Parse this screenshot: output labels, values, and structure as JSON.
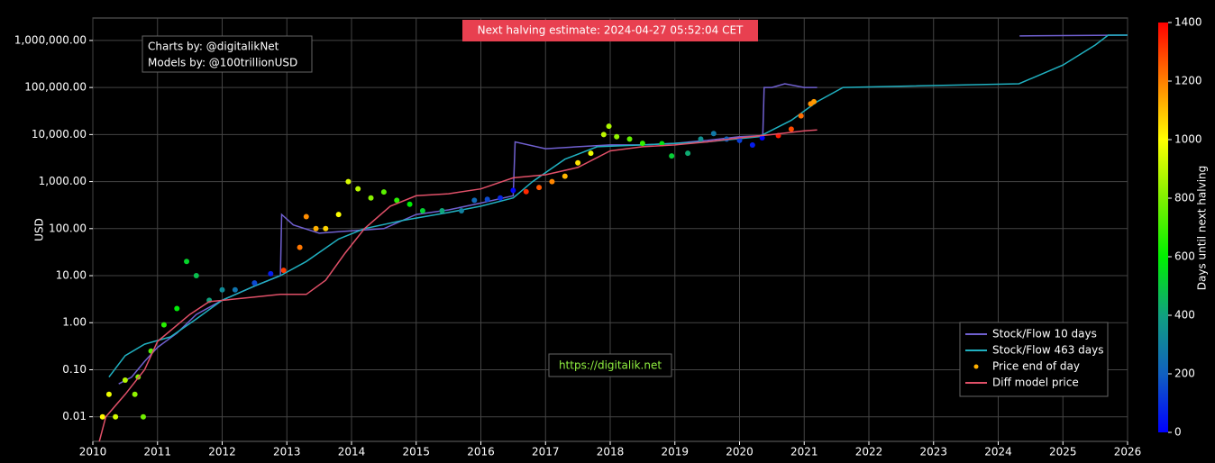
{
  "chart_data": {
    "type": "line",
    "title": "Next halving estimate: 2024-04-27 05:52:04 CET",
    "credits": [
      "Charts by: @digitalikNet",
      "Models by: @100trillionUSD"
    ],
    "watermark": "https://digitalik.net",
    "y_label": "USD",
    "log_scale": true,
    "grid": true,
    "legend_position": "lower right",
    "xlim": [
      2010,
      2026
    ],
    "xticks": [
      2010,
      2011,
      2012,
      2013,
      2014,
      2015,
      2016,
      2017,
      2018,
      2019,
      2020,
      2021,
      2022,
      2023,
      2024,
      2025,
      2026
    ],
    "ylim": [
      0.003,
      3000000
    ],
    "yticks": [
      {
        "value": 0.01,
        "label": "0.01"
      },
      {
        "value": 0.1,
        "label": "0.10"
      },
      {
        "value": 1,
        "label": "1.00"
      },
      {
        "value": 10,
        "label": "10.00"
      },
      {
        "value": 100,
        "label": "100.00"
      },
      {
        "value": 1000,
        "label": "1,000.00"
      },
      {
        "value": 10000,
        "label": "10,000.00"
      },
      {
        "value": 100000,
        "label": "100,000.00"
      },
      {
        "value": 1000000,
        "label": "1,000,000.00"
      }
    ],
    "colorbar": {
      "label": "Days until next halving",
      "clim": [
        0,
        1400
      ],
      "ticks": [
        0,
        200,
        400,
        600,
        800,
        1000,
        1200,
        1400
      ],
      "colormap": [
        "#0000ff",
        "#1060c0",
        "#10a080",
        "#00f000",
        "#80f000",
        "#ffff00",
        "#ff8000",
        "#ff0000"
      ]
    },
    "series": [
      {
        "name": "Stock/Flow 10 days",
        "type": "line",
        "color": "#7060d0",
        "x": [
          2010.4,
          2010.6,
          2010.8,
          2011.0,
          2011.3,
          2011.6,
          2012.0,
          2012.5,
          2012.9,
          2012.92,
          2013.1,
          2013.5,
          2014.0,
          2014.5,
          2015.0,
          2015.5,
          2016.0,
          2016.5,
          2016.53,
          2017.0,
          2017.5,
          2018.0,
          2018.5,
          2019.0,
          2019.5,
          2020.0,
          2020.36,
          2020.38,
          2020.5,
          2020.7,
          2021.0,
          2021.2,
          2022.0,
          2024.33,
          2025.0,
          2026.0
        ],
        "values": [
          0.05,
          0.07,
          0.15,
          0.3,
          0.6,
          1.5,
          3,
          6,
          10,
          200,
          120,
          80,
          90,
          100,
          200,
          250,
          350,
          500,
          7000,
          5000,
          5500,
          6000,
          6000,
          6500,
          7500,
          9000,
          9500,
          100000,
          100000,
          120000,
          100000,
          100000,
          null,
          1250000,
          1270000,
          1300000
        ]
      },
      {
        "name": "Stock/Flow 463 days",
        "type": "line",
        "color": "#20b0c0",
        "x": [
          2010.25,
          2010.5,
          2010.8,
          2011.2,
          2011.6,
          2012.0,
          2012.5,
          2012.9,
          2013.3,
          2013.8,
          2014.2,
          2014.8,
          2015.5,
          2016.0,
          2016.5,
          2016.8,
          2017.3,
          2017.8,
          2018.5,
          2019.5,
          2020.3,
          2020.8,
          2021.2,
          2021.6,
          2024.32,
          2025.0,
          2025.5,
          2025.7,
          2026.0
        ],
        "values": [
          0.07,
          0.2,
          0.35,
          0.5,
          1.2,
          3,
          6,
          10,
          20,
          60,
          100,
          150,
          220,
          300,
          450,
          1000,
          3000,
          5500,
          6000,
          7000,
          9000,
          20000,
          50000,
          100000,
          120000,
          300000,
          800000,
          1300000,
          1300000
        ]
      },
      {
        "name": "Price end of day",
        "type": "scatter",
        "color": "#ffb000",
        "x": [
          2010.15,
          2010.25,
          2010.35,
          2010.5,
          2010.65,
          2010.7,
          2010.78,
          2010.9,
          2011.1,
          2011.3,
          2011.45,
          2011.6,
          2011.8,
          2012.0,
          2012.2,
          2012.5,
          2012.75,
          2012.95,
          2013.2,
          2013.3,
          2013.45,
          2013.6,
          2013.8,
          2013.95,
          2014.1,
          2014.3,
          2014.5,
          2014.7,
          2014.9,
          2015.1,
          2015.4,
          2015.7,
          2015.9,
          2016.1,
          2016.3,
          2016.5,
          2016.7,
          2016.9,
          2017.1,
          2017.3,
          2017.5,
          2017.7,
          2017.9,
          2017.98,
          2018.1,
          2018.3,
          2018.5,
          2018.8,
          2018.95,
          2019.2,
          2019.4,
          2019.6,
          2019.8,
          2020.0,
          2020.2,
          2020.35,
          2020.6,
          2020.8,
          2020.95,
          2021.1,
          2021.15
        ],
        "values": [
          0.01,
          0.03,
          0.01,
          0.06,
          0.03,
          0.07,
          0.01,
          0.25,
          0.9,
          2,
          20,
          10,
          3,
          5,
          5,
          7,
          11,
          13,
          40,
          180,
          100,
          100,
          200,
          1000,
          700,
          450,
          600,
          400,
          330,
          240,
          240,
          240,
          400,
          420,
          450,
          650,
          610,
          750,
          1000,
          1300,
          2500,
          4000,
          10000,
          15000,
          9000,
          8000,
          6500,
          6400,
          3500,
          4000,
          8000,
          10500,
          8000,
          7500,
          6000,
          8500,
          9500,
          13000,
          25000,
          45000,
          50000
        ],
        "days": [
          1008,
          972,
          935,
          880,
          825,
          807,
          778,
          734,
          661,
          588,
          533,
          478,
          405,
          332,
          259,
          150,
          58,
          1308,
          1216,
          1180,
          1125,
          1070,
          997,
          942,
          888,
          815,
          741,
          668,
          595,
          522,
          413,
          303,
          230,
          157,
          84,
          11,
          1337,
          1264,
          1191,
          1117,
          1044,
          971,
          898,
          869,
          826,
          753,
          680,
          570,
          515,
          424,
          351,
          278,
          205,
          131,
          58,
          4,
          1359,
          1286,
          1231,
          1176,
          1158
        ]
      },
      {
        "name": "Diff model price",
        "type": "line",
        "color": "#e05068",
        "x": [
          2010.1,
          2010.2,
          2010.5,
          2010.8,
          2011.0,
          2011.5,
          2011.8,
          2012.5,
          2012.9,
          2013.3,
          2013.6,
          2013.9,
          2014.2,
          2014.6,
          2015.0,
          2015.5,
          2016.0,
          2016.5,
          2017.0,
          2017.5,
          2018.0,
          2018.5,
          2019.0,
          2019.5,
          2020.0,
          2020.5,
          2021.0,
          2021.2
        ],
        "values": [
          0.003,
          0.01,
          0.03,
          0.1,
          0.4,
          1.5,
          2.8,
          3.5,
          4,
          4,
          8,
          30,
          100,
          300,
          500,
          550,
          700,
          1200,
          1400,
          2000,
          4500,
          5500,
          6000,
          7000,
          8500,
          10000,
          12000,
          12500
        ]
      }
    ]
  }
}
